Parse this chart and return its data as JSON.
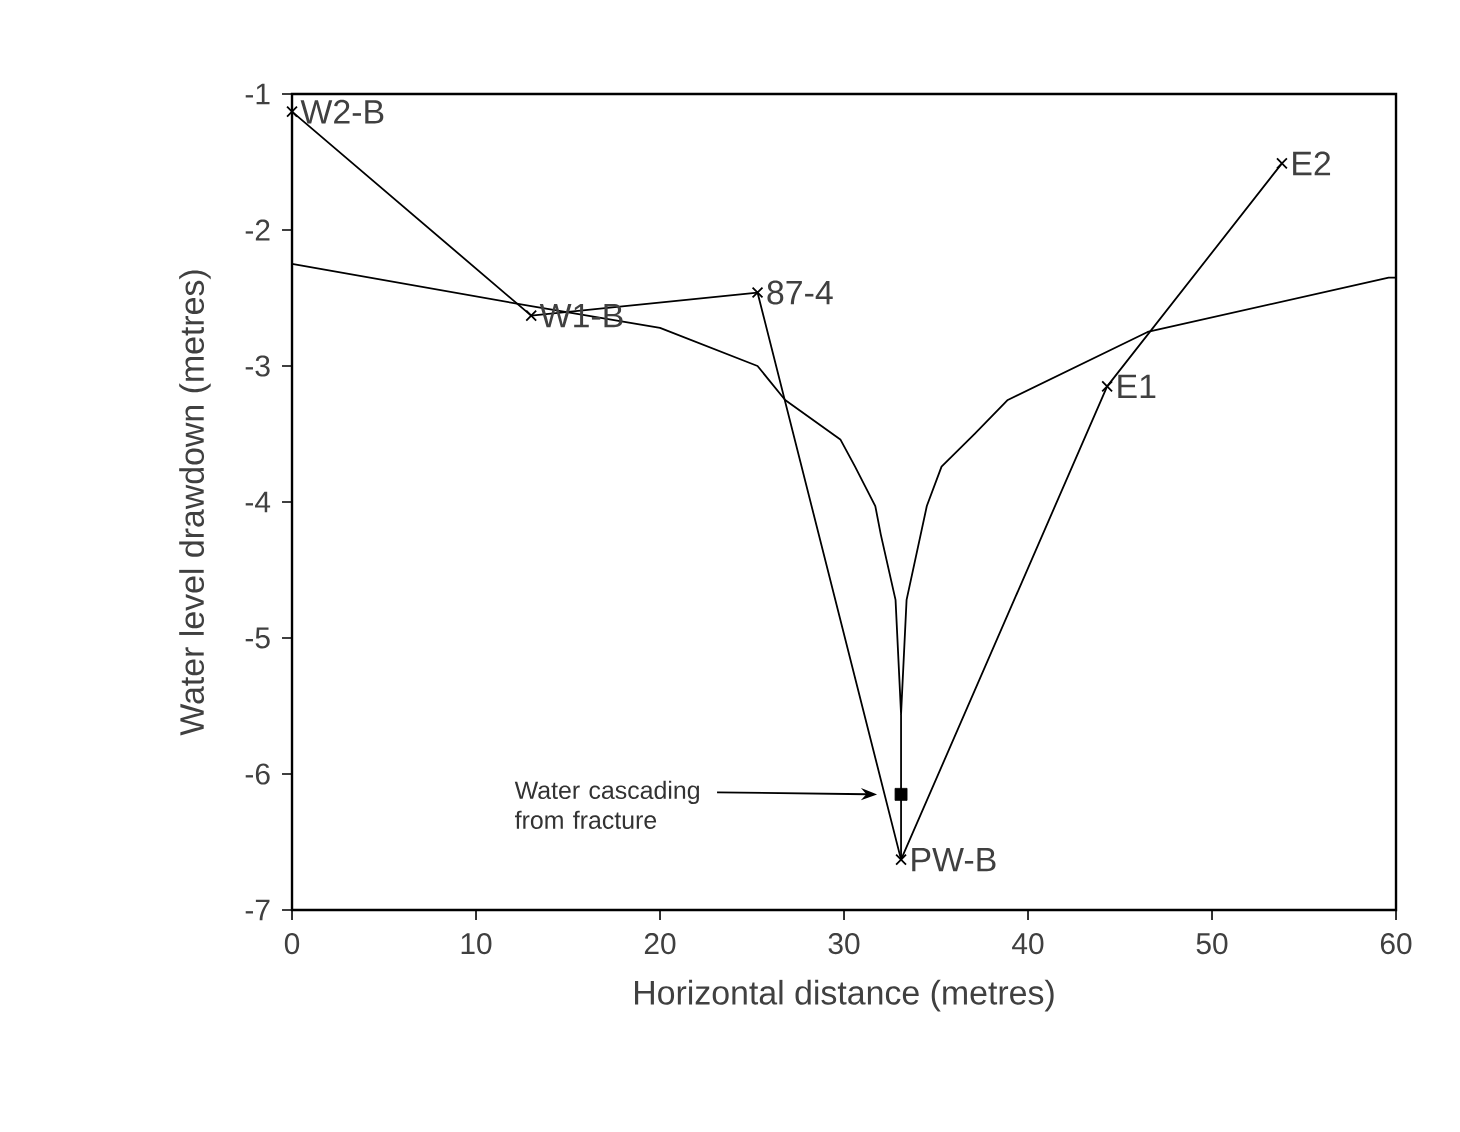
{
  "chart_data": {
    "type": "line",
    "xlabel": "Horizontal distance  (metres)",
    "ylabel": "Water level drawdown  (metres)",
    "xlim": [
      0,
      60
    ],
    "ylim": [
      -7,
      -1
    ],
    "xticks": [
      0,
      10,
      20,
      30,
      40,
      50,
      60
    ],
    "yticks": [
      -7,
      -6,
      -5,
      -4,
      -3,
      -2,
      -1
    ],
    "series": [
      {
        "type": "line",
        "marker": "cross",
        "color": "#000000",
        "x": [
          0,
          13,
          25.3,
          33.1,
          44.3,
          53.8
        ],
        "values": [
          -1.13,
          -2.63,
          -2.46,
          -6.63,
          -3.15,
          -1.51
        ]
      },
      {
        "type": "line",
        "marker": "none",
        "color": "#000000",
        "x": [
          0,
          13,
          20,
          25.3,
          26.8,
          29.8,
          30.6,
          31.7,
          32.0,
          32.8,
          33.1,
          33.4,
          34.5,
          35.3,
          37.1,
          38.9,
          46.5,
          59.6,
          60
        ],
        "values": [
          -2.25,
          -2.56,
          -2.72,
          -3.0,
          -3.25,
          -3.54,
          -3.74,
          -4.03,
          -4.24,
          -4.72,
          -5.56,
          -4.72,
          -4.03,
          -3.74,
          -3.5,
          -3.25,
          -2.75,
          -2.35,
          -2.35
        ]
      },
      {
        "type": "line",
        "marker": "none",
        "color": "#000000",
        "x": [
          33.1,
          33.1,
          33.1
        ],
        "values": [
          -5.56,
          -6.15,
          -6.63
        ]
      },
      {
        "type": "scatter",
        "marker": "square",
        "color": "#000000",
        "x": [
          33.1
        ],
        "values": [
          -6.15
        ]
      }
    ],
    "annotations": [
      {
        "text": "W2-B",
        "x": 0,
        "y": -1.13
      },
      {
        "text": "W1-B",
        "x": 13,
        "y": -2.63
      },
      {
        "text": "87-4",
        "x": 25.3,
        "y": -2.46
      },
      {
        "text": "PW-B",
        "x": 33.1,
        "y": -6.63
      },
      {
        "text": "E1",
        "x": 44.3,
        "y": -3.15
      },
      {
        "text": "E2",
        "x": 53.8,
        "y": -1.51
      },
      "Water cascading from fracture"
    ]
  }
}
